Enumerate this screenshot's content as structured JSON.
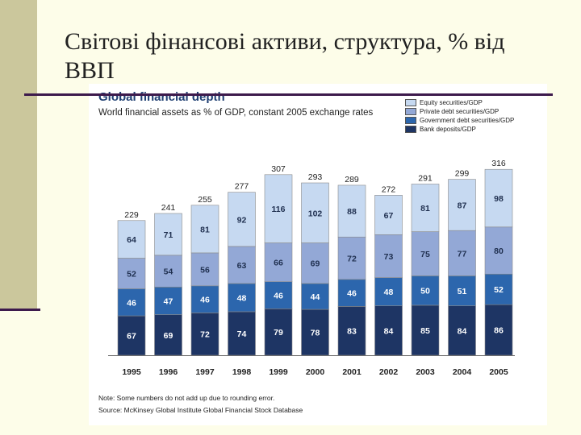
{
  "slide": {
    "title": "Світові фінансові активи, структура, % від ВВП"
  },
  "colors": {
    "bank": "#1e3564",
    "gov": "#2c66ad",
    "priv": "#93a8d6",
    "equity": "#c6d9f1"
  },
  "chart_data": {
    "type": "bar",
    "stacked": true,
    "title": "Global financial depth",
    "subtitle": "World financial assets as % of GDP, constant 2005 exchange rates",
    "categories": [
      "1995",
      "1996",
      "1997",
      "1998",
      "1999",
      "2000",
      "2001",
      "2002",
      "2003",
      "2004",
      "2005"
    ],
    "series": [
      {
        "name": "Bank deposits/GDP",
        "key": "bank",
        "values": [
          67,
          69,
          72,
          74,
          79,
          78,
          83,
          84,
          85,
          84,
          86
        ]
      },
      {
        "name": "Government debt securities/GDP",
        "key": "gov",
        "values": [
          46,
          47,
          46,
          48,
          46,
          44,
          46,
          48,
          50,
          51,
          52
        ]
      },
      {
        "name": "Private debt securities/GDP",
        "key": "priv",
        "values": [
          52,
          54,
          56,
          63,
          66,
          69,
          72,
          73,
          75,
          77,
          80
        ]
      },
      {
        "name": "Equity securities/GDP",
        "key": "equity",
        "values": [
          64,
          71,
          81,
          92,
          116,
          102,
          88,
          67,
          81,
          87,
          98
        ]
      }
    ],
    "totals": [
      229,
      241,
      255,
      277,
      307,
      293,
      289,
      272,
      291,
      299,
      316
    ],
    "ylim": [
      0,
      330
    ],
    "note": "Note: Some numbers do not add up due to rounding error.",
    "source": "Source: McKinsey Global Institute Global Financial Stock Database"
  }
}
